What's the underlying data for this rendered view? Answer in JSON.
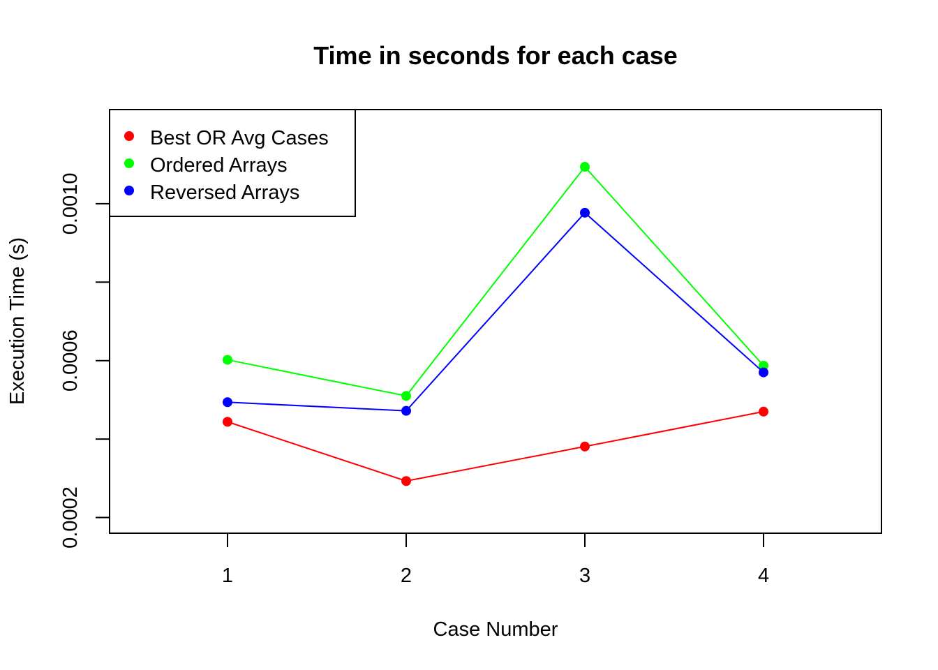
{
  "chart_data": {
    "type": "line",
    "title": "Time in seconds for each case",
    "xlabel": "Case Number",
    "ylabel": "Execution Time (s)",
    "x": [
      1,
      2,
      3,
      4
    ],
    "x_ticks": [
      "1",
      "2",
      "3",
      "4"
    ],
    "y_ticks": [
      "0.0002",
      "0.0006",
      "0.0010"
    ],
    "y_tick_values": [
      0.0002,
      0.0004,
      0.0006,
      0.0008,
      0.001
    ],
    "xlim": [
      0.34,
      4.66
    ],
    "ylim": [
      0.00016,
      0.00124
    ],
    "grid": false,
    "legend": {
      "placement": "top-left",
      "frame": true
    },
    "series": [
      {
        "name": "Best OR Avg Cases",
        "color": "#ff0000",
        "values": [
          0.000444,
          0.000293,
          0.000381,
          0.00047
        ]
      },
      {
        "name": "Ordered Arrays",
        "color": "#00ff00",
        "values": [
          0.000602,
          0.00051,
          0.001094,
          0.000587
        ]
      },
      {
        "name": "Reversed Arrays",
        "color": "#0000ff",
        "values": [
          0.000494,
          0.000472,
          0.000977,
          0.00057
        ]
      }
    ]
  }
}
